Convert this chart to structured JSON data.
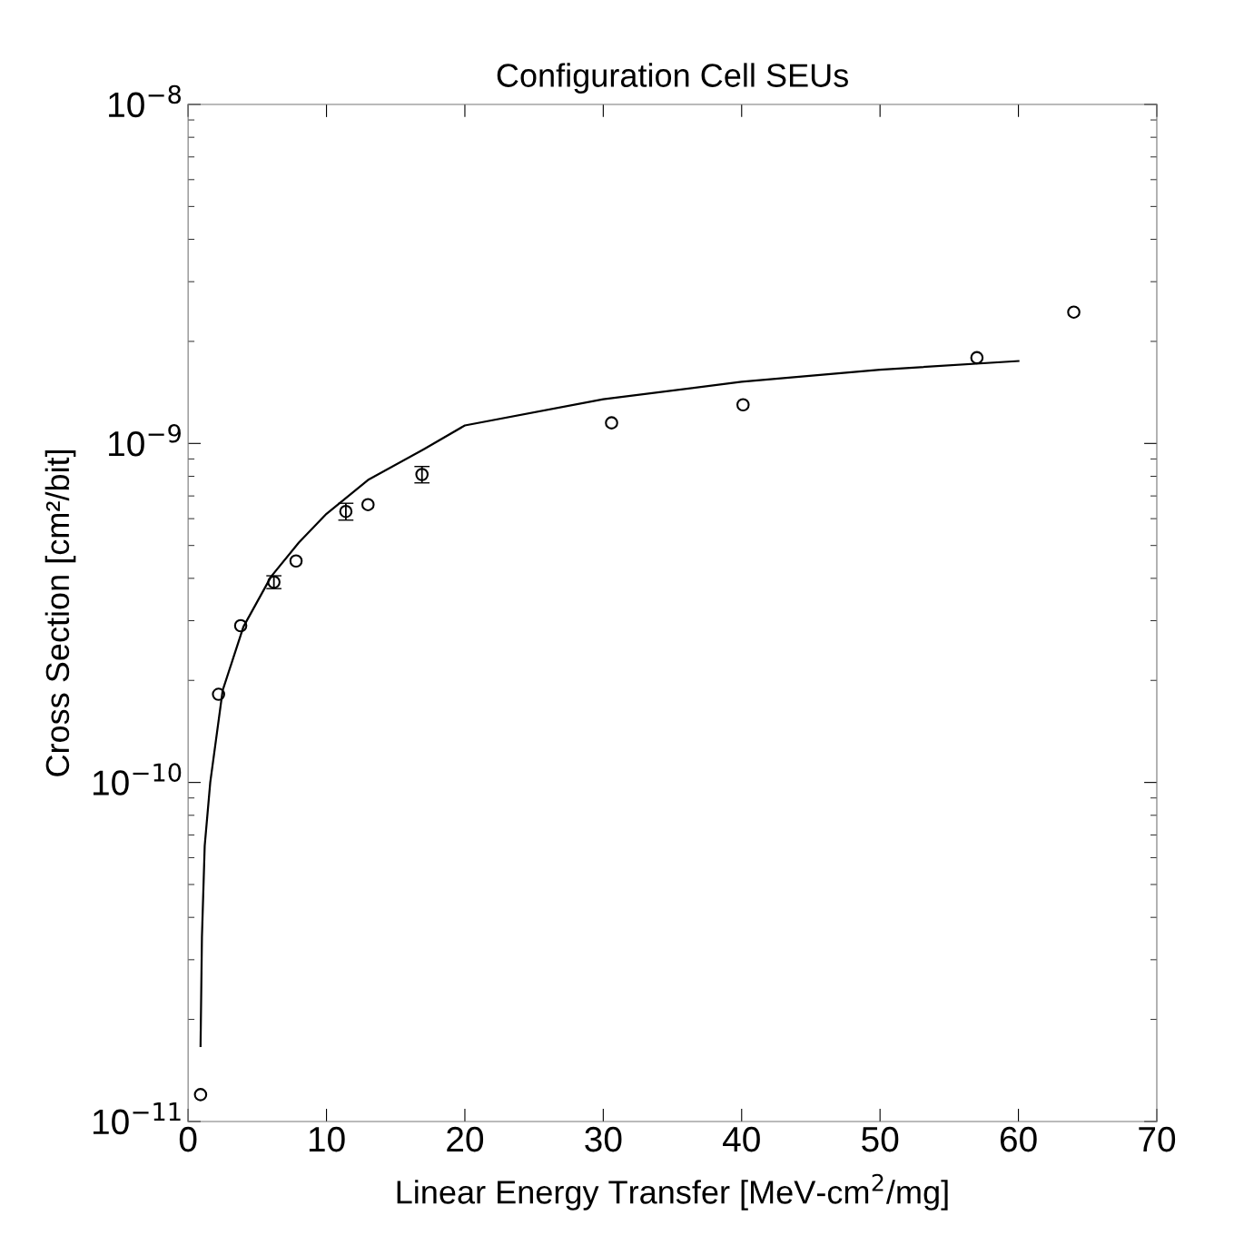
{
  "chart_data": {
    "type": "scatter",
    "title": "Configuration Cell SEUs",
    "xlabel": "Linear Energy Transfer [MeV-cm$^{2}$/mg]",
    "ylabel": "Cross Section [cm²/bit]",
    "log": "y",
    "xlim": [
      0,
      70
    ],
    "xticks": [
      0,
      10,
      20,
      30,
      40,
      50,
      60,
      70
    ],
    "ylim": [
      1e-11,
      1e-08
    ],
    "yticks": [
      {
        "value": 1e-11,
        "label": "10$^{−11}$"
      },
      {
        "value": 1e-10,
        "label": "10$^{−10}$"
      },
      {
        "value": 1e-09,
        "label": "10$^{−9}$"
      },
      {
        "value": 1e-08,
        "label": "10$^{−8}$"
      }
    ],
    "grid": false,
    "marker": "circle",
    "series": [
      {
        "color": "#000000",
        "x": [
          0.9,
          2.2,
          3.8,
          6.2,
          7.8,
          11.4,
          13.0,
          16.9,
          30.6,
          40.1,
          57.0,
          64.0
        ],
        "values": [
          1.2e-11,
          1.82e-10,
          2.9e-10,
          3.9e-10,
          4.5e-10,
          6.3e-10,
          6.6e-10,
          8.1e-10,
          1.15e-09,
          1.3e-09,
          1.79e-09,
          2.44e-09
        ],
        "errors": [
          null,
          null,
          null,
          1.7e-11,
          null,
          3.6e-11,
          null,
          4.5e-11,
          null,
          null,
          null,
          null
        ]
      },
      {
        "type": "line",
        "color": "#000000",
        "line_style": "solid",
        "marker": "none",
        "x": [
          0.9,
          1.0,
          1.2,
          1.6,
          2.5,
          4,
          6,
          8,
          10,
          13,
          17,
          20,
          30,
          40,
          50,
          60
        ],
        "values": [
          1.67e-11,
          3.5e-11,
          6.5e-11,
          1e-10,
          1.87e-10,
          2.88e-10,
          4.05e-10,
          5.1e-10,
          6.2e-10,
          7.8e-10,
          9.6e-10,
          1.13e-09,
          1.35e-09,
          1.52e-09,
          1.65e-09,
          1.75e-09
        ]
      }
    ]
  }
}
